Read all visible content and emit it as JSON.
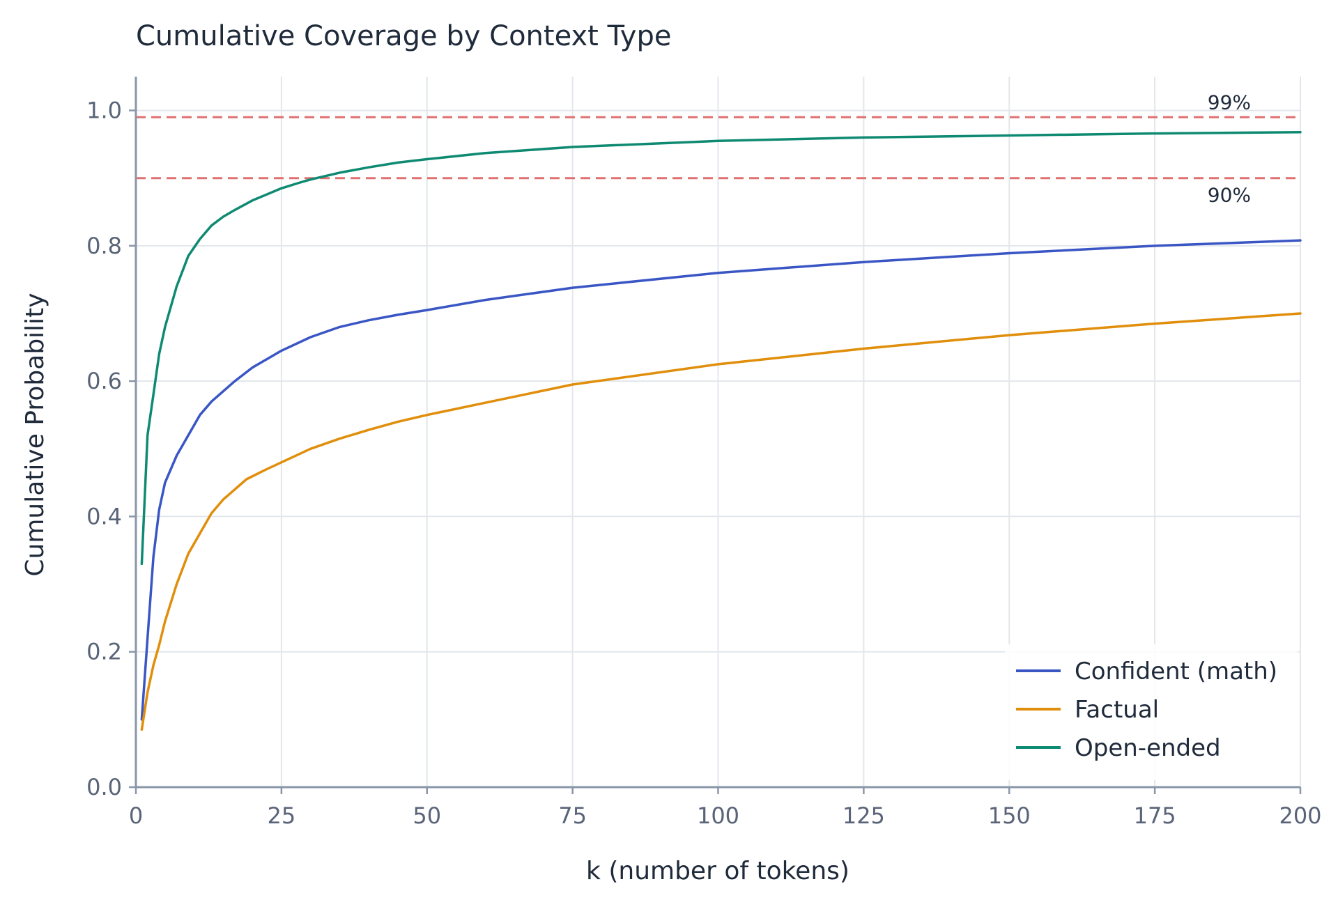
{
  "chart_data": {
    "type": "line",
    "title": "Cumulative Coverage by Context Type",
    "xlabel": "k (number of tokens)",
    "ylabel": "Cumulative Probability",
    "xlim": [
      0,
      200
    ],
    "ylim": [
      0,
      1.05
    ],
    "xticks": [
      0,
      25,
      50,
      75,
      100,
      125,
      150,
      175,
      200
    ],
    "xtick_labels": [
      "0",
      "25",
      "50",
      "75",
      "100",
      "125",
      "150",
      "175",
      "200"
    ],
    "yticks": [
      0.0,
      0.2,
      0.4,
      0.6,
      0.8,
      1.0
    ],
    "ytick_labels": [
      "0.0",
      "0.2",
      "0.4",
      "0.6",
      "0.8",
      "1.0"
    ],
    "grid": true,
    "legend_position": "bottom-right",
    "reference_lines": [
      {
        "y": 0.99,
        "label": "99%",
        "color": "#e07070"
      },
      {
        "y": 0.9,
        "label": "90%",
        "color": "#e07070"
      }
    ],
    "series": [
      {
        "name": "Confident (math)",
        "color": "#3a56c5",
        "x": [
          1,
          2,
          3,
          4,
          5,
          7,
          9,
          11,
          13,
          15,
          17,
          20,
          22,
          25,
          30,
          35,
          40,
          45,
          50,
          60,
          75,
          100,
          125,
          150,
          175,
          200
        ],
        "y": [
          0.1,
          0.22,
          0.34,
          0.41,
          0.45,
          0.49,
          0.52,
          0.55,
          0.57,
          0.585,
          0.6,
          0.62,
          0.63,
          0.645,
          0.665,
          0.68,
          0.69,
          0.698,
          0.705,
          0.72,
          0.738,
          0.76,
          0.776,
          0.789,
          0.8,
          0.808
        ]
      },
      {
        "name": "Factual",
        "color": "#e08e0b",
        "x": [
          1,
          2,
          3,
          4,
          5,
          7,
          9,
          11,
          13,
          15,
          17,
          19,
          22,
          25,
          30,
          35,
          40,
          45,
          50,
          60,
          75,
          100,
          125,
          150,
          175,
          200
        ],
        "y": [
          0.085,
          0.14,
          0.18,
          0.21,
          0.245,
          0.3,
          0.345,
          0.375,
          0.405,
          0.425,
          0.44,
          0.455,
          0.468,
          0.48,
          0.5,
          0.515,
          0.528,
          0.54,
          0.55,
          0.568,
          0.595,
          0.625,
          0.648,
          0.668,
          0.685,
          0.7
        ]
      },
      {
        "name": "Open-ended",
        "color": "#0f8a72",
        "x": [
          1,
          2,
          3,
          4,
          5,
          7,
          9,
          11,
          13,
          15,
          17,
          20,
          25,
          28,
          30,
          35,
          40,
          45,
          50,
          60,
          75,
          100,
          125,
          150,
          175,
          200
        ],
        "y": [
          0.33,
          0.52,
          0.58,
          0.64,
          0.68,
          0.74,
          0.785,
          0.81,
          0.83,
          0.843,
          0.853,
          0.867,
          0.885,
          0.893,
          0.898,
          0.908,
          0.916,
          0.923,
          0.928,
          0.937,
          0.946,
          0.955,
          0.96,
          0.963,
          0.966,
          0.968
        ]
      }
    ]
  }
}
